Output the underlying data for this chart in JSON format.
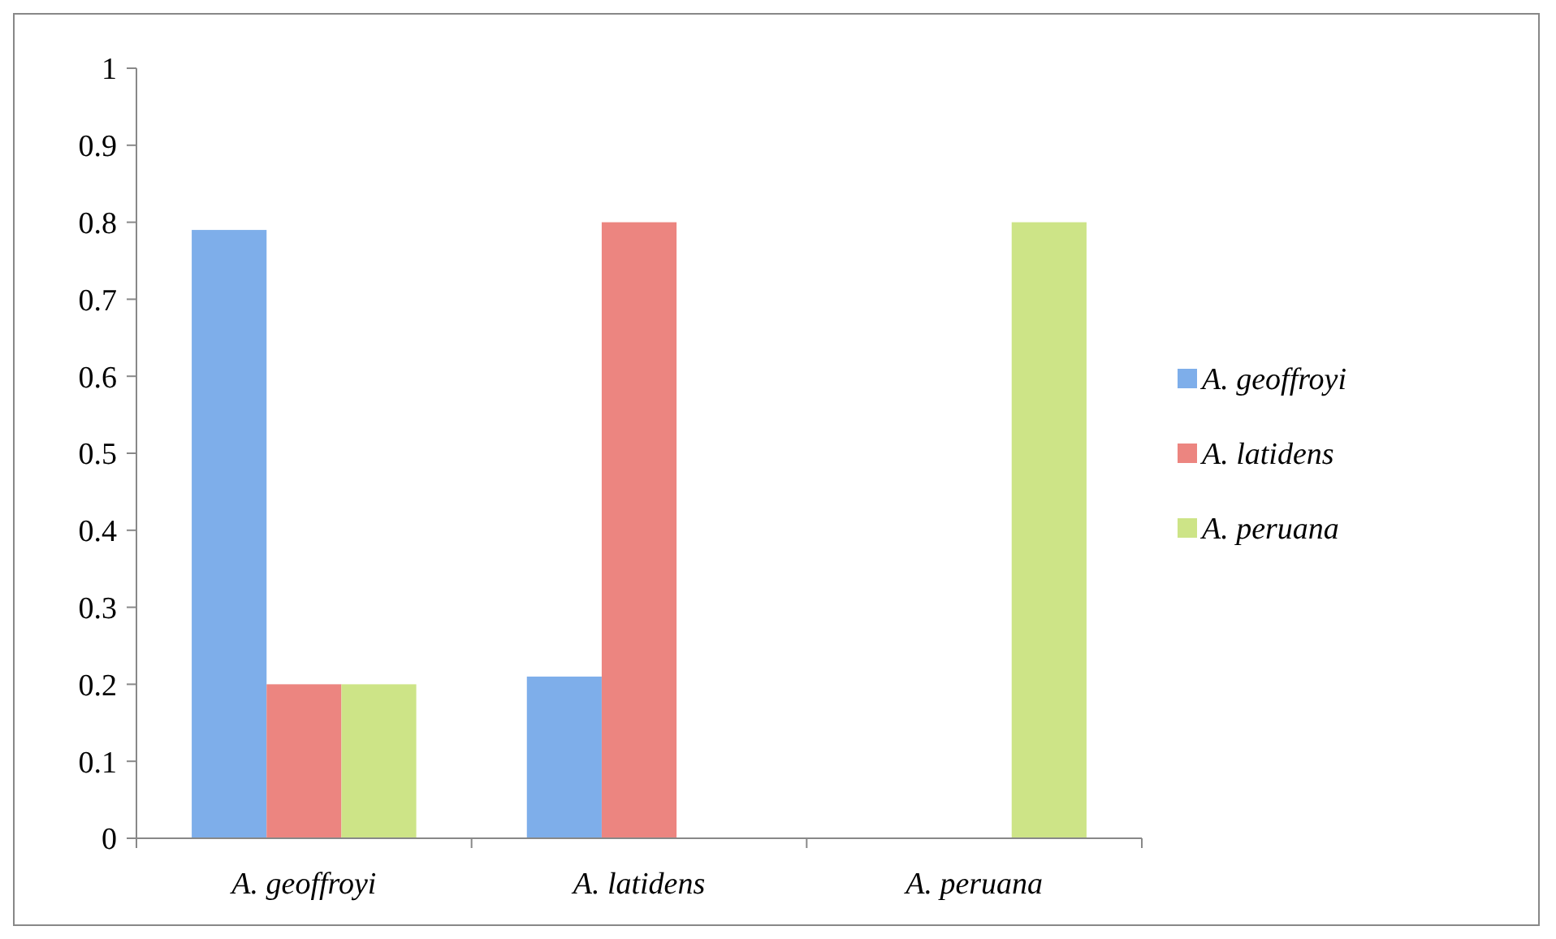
{
  "chart_data": {
    "type": "bar",
    "categories": [
      "A. geoffroyi",
      "A. latidens",
      "A. peruana"
    ],
    "series": [
      {
        "name": "A. geoffroyi",
        "color": "#7eaeea",
        "values": [
          0.79,
          0.21,
          null
        ]
      },
      {
        "name": "A. latidens",
        "color": "#ec8580",
        "values": [
          0.2,
          0.8,
          null
        ]
      },
      {
        "name": "A. peruana",
        "color": "#cde487",
        "values": [
          0.2,
          null,
          0.8
        ]
      }
    ],
    "ylim": [
      0,
      1
    ],
    "yticks": [
      0,
      0.1,
      0.2,
      0.3,
      0.4,
      0.5,
      0.6,
      0.7,
      0.8,
      0.9,
      1
    ],
    "grid": false,
    "legend": "right"
  }
}
